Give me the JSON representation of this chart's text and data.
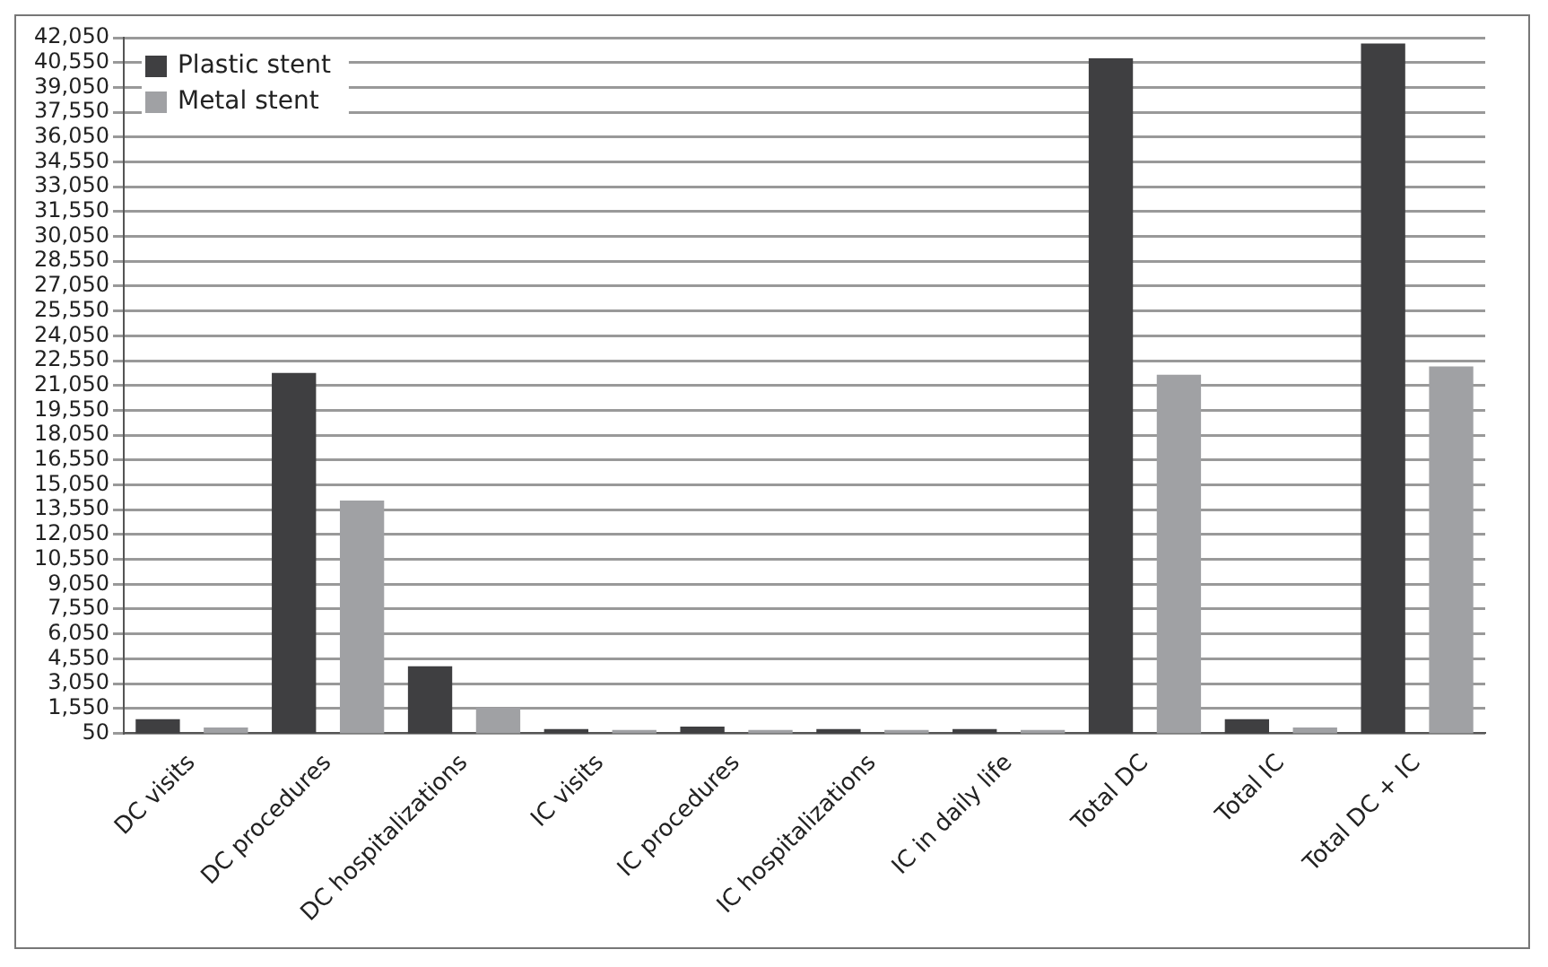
{
  "chart_data": {
    "type": "bar",
    "categories": [
      "DC visits",
      "DC procedures",
      "DC hospitalizations",
      "IC visits",
      "IC procedures",
      "IC hospitalizations",
      "IC in daily life",
      "Total DC",
      "Total IC",
      "Total DC + IC"
    ],
    "series": [
      {
        "name": "Plastic stent",
        "color": "#3f3f41",
        "values": [
          900,
          21800,
          4100,
          300,
          450,
          300,
          300,
          40800,
          900,
          41700
        ]
      },
      {
        "name": "Metal stent",
        "color": "#a0a1a4",
        "values": [
          400,
          14100,
          1600,
          250,
          250,
          250,
          250,
          21700,
          400,
          22200
        ]
      }
    ],
    "ylim": [
      50,
      42050
    ],
    "yticks": [
      {
        "value": 50,
        "label": "50"
      },
      {
        "value": 1550,
        "label": "1,550"
      },
      {
        "value": 3050,
        "label": "3,050"
      },
      {
        "value": 4550,
        "label": "4,550"
      },
      {
        "value": 6050,
        "label": "6,050"
      },
      {
        "value": 7550,
        "label": "7,550"
      },
      {
        "value": 9050,
        "label": "9,050"
      },
      {
        "value": 10550,
        "label": "10,550"
      },
      {
        "value": 12050,
        "label": "12,050"
      },
      {
        "value": 13550,
        "label": "13,550"
      },
      {
        "value": 15050,
        "label": "15,050"
      },
      {
        "value": 16550,
        "label": "16,550"
      },
      {
        "value": 18050,
        "label": "18,050"
      },
      {
        "value": 19550,
        "label": "19,550"
      },
      {
        "value": 21050,
        "label": "21,050"
      },
      {
        "value": 22550,
        "label": "22,550"
      },
      {
        "value": 24050,
        "label": "24,050"
      },
      {
        "value": 25550,
        "label": "25,550"
      },
      {
        "value": 27050,
        "label": "27,050"
      },
      {
        "value": 28550,
        "label": "28,550"
      },
      {
        "value": 30050,
        "label": "30,050"
      },
      {
        "value": 31550,
        "label": "31,550"
      },
      {
        "value": 33050,
        "label": "33,050"
      },
      {
        "value": 34550,
        "label": "34,550"
      },
      {
        "value": 36050,
        "label": "36,050"
      },
      {
        "value": 37550,
        "label": "37,550"
      },
      {
        "value": 39050,
        "label": "39,050"
      },
      {
        "value": 40550,
        "label": "40,550"
      },
      {
        "value": 42050,
        "label": "42,050"
      }
    ],
    "grid": "y",
    "legend": "top left"
  }
}
